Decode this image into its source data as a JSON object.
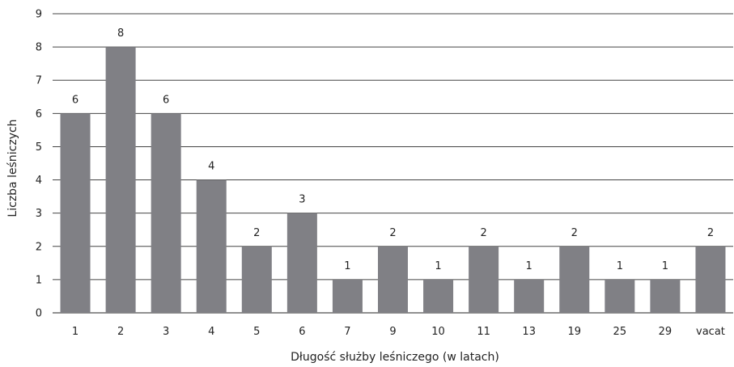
{
  "chart_data": {
    "type": "bar",
    "xlabel": "Długość służby leśniczego (w latach)",
    "ylabel": "Liczba leśniczych",
    "categories": [
      "1",
      "2",
      "3",
      "4",
      "5",
      "6",
      "7",
      "9",
      "10",
      "11",
      "13",
      "19",
      "25",
      "29",
      "vacat"
    ],
    "values": [
      6,
      8,
      6,
      4,
      2,
      3,
      1,
      2,
      1,
      2,
      1,
      2,
      1,
      1,
      2
    ],
    "ylim": [
      0,
      9
    ],
    "yticks": [
      0,
      1,
      2,
      3,
      4,
      5,
      6,
      7,
      8,
      9
    ],
    "grid": true,
    "legend": "none",
    "bar_color": "#808085",
    "grid_color": "#444444"
  }
}
